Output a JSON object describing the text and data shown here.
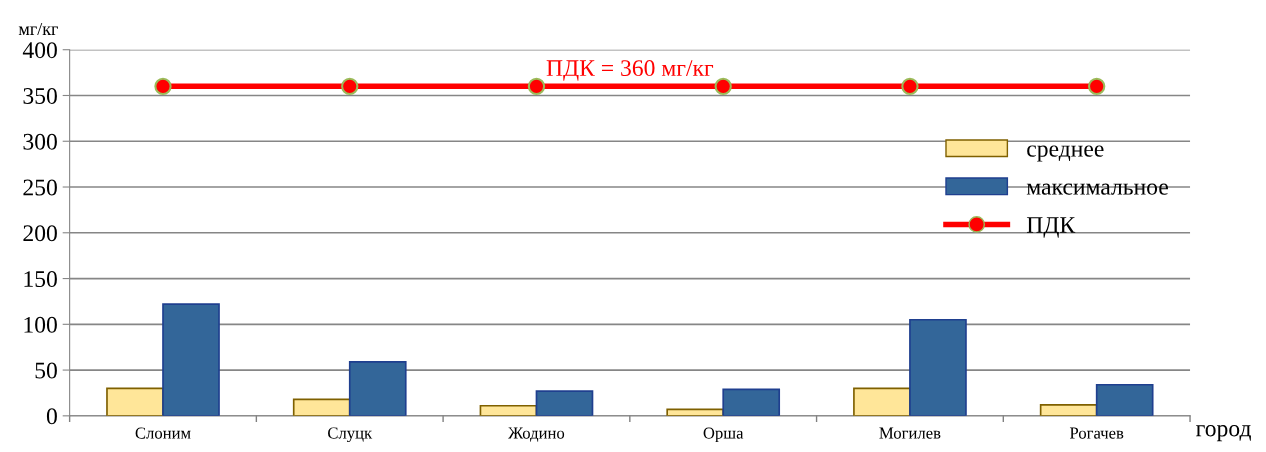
{
  "chart_data": {
    "type": "bar",
    "ylabel": "мг/кг",
    "xlabel": "город",
    "categories": [
      "Слоним",
      "Слуцк",
      "Жодино",
      "Орша",
      "Могилев",
      "Рогачев"
    ],
    "series": [
      {
        "name": "среднее",
        "color": "#ffe699",
        "values": [
          30,
          18,
          11,
          7,
          30,
          12
        ]
      },
      {
        "name": "максимальное",
        "color": "#336699",
        "values": [
          122,
          59,
          27,
          29,
          105,
          34
        ]
      },
      {
        "name": "ПДК",
        "type": "line",
        "color": "#ff0000",
        "marker": "circle",
        "values": [
          360,
          360,
          360,
          360,
          360,
          360
        ]
      }
    ],
    "annotations": [
      "ПДК = 360 мг/кг"
    ],
    "ylim": [
      0,
      400
    ],
    "yticks": [
      0,
      50,
      100,
      150,
      200,
      250,
      300,
      350,
      400
    ],
    "grid": "y",
    "legend": "right"
  }
}
